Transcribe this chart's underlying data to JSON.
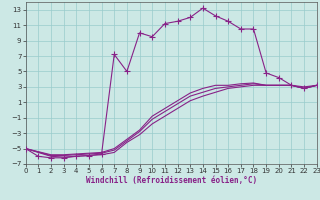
{
  "xlabel": "Windchill (Refroidissement éolien,°C)",
  "bg_color": "#cce8e5",
  "line_color": "#882288",
  "grid_color": "#99cccc",
  "xlim": [
    0,
    23
  ],
  "ylim": [
    -7,
    14
  ],
  "yticks": [
    -7,
    -5,
    -3,
    -1,
    1,
    3,
    5,
    7,
    9,
    11,
    13
  ],
  "xticks": [
    0,
    1,
    2,
    3,
    4,
    5,
    6,
    7,
    8,
    9,
    10,
    11,
    12,
    13,
    14,
    15,
    16,
    17,
    18,
    19,
    20,
    21,
    22,
    23
  ],
  "series": [
    {
      "x": [
        0,
        1,
        2,
        3,
        4,
        5,
        6,
        7,
        8,
        9,
        10,
        11,
        12,
        13,
        14,
        15,
        16,
        17,
        18,
        19,
        20,
        21,
        22,
        23
      ],
      "y": [
        -5,
        -6,
        -6.2,
        -6.2,
        -6,
        -5.9,
        -5.7,
        7.2,
        5.0,
        10.0,
        9.5,
        11.2,
        11.5,
        12.0,
        13.2,
        12.2,
        11.5,
        10.5,
        10.5,
        4.8,
        4.2,
        3.2,
        2.8,
        3.2
      ],
      "marker": true
    },
    {
      "x": [
        0,
        2,
        3,
        4,
        5,
        6,
        7,
        8,
        9,
        10,
        11,
        12,
        13,
        14,
        15,
        16,
        17,
        18,
        19,
        20,
        21,
        22,
        23
      ],
      "y": [
        -5,
        -6,
        -6.1,
        -6,
        -5.9,
        -5.8,
        -5.5,
        -4.2,
        -3.2,
        -1.8,
        -0.8,
        0.2,
        1.2,
        1.8,
        2.3,
        2.8,
        3.0,
        3.2,
        3.2,
        3.2,
        3.2,
        3.0,
        3.2
      ],
      "marker": false
    },
    {
      "x": [
        0,
        2,
        3,
        4,
        5,
        6,
        7,
        8,
        9,
        10,
        11,
        12,
        13,
        14,
        15,
        16,
        17,
        18,
        19,
        20,
        21,
        22,
        23
      ],
      "y": [
        -5,
        -5.9,
        -5.9,
        -5.8,
        -5.7,
        -5.6,
        -5.2,
        -4.0,
        -2.8,
        -1.2,
        -0.2,
        0.8,
        1.8,
        2.3,
        2.8,
        3.0,
        3.2,
        3.4,
        3.2,
        3.2,
        3.2,
        2.8,
        3.2
      ],
      "marker": false
    },
    {
      "x": [
        0,
        2,
        3,
        4,
        5,
        6,
        7,
        8,
        9,
        10,
        11,
        12,
        13,
        14,
        15,
        16,
        17,
        18,
        19,
        20,
        21,
        22,
        23
      ],
      "y": [
        -5,
        -5.8,
        -5.8,
        -5.7,
        -5.6,
        -5.5,
        -5.0,
        -3.8,
        -2.6,
        -0.8,
        0.2,
        1.2,
        2.2,
        2.8,
        3.2,
        3.2,
        3.4,
        3.5,
        3.2,
        3.2,
        3.2,
        2.8,
        3.2
      ],
      "marker": false
    }
  ]
}
